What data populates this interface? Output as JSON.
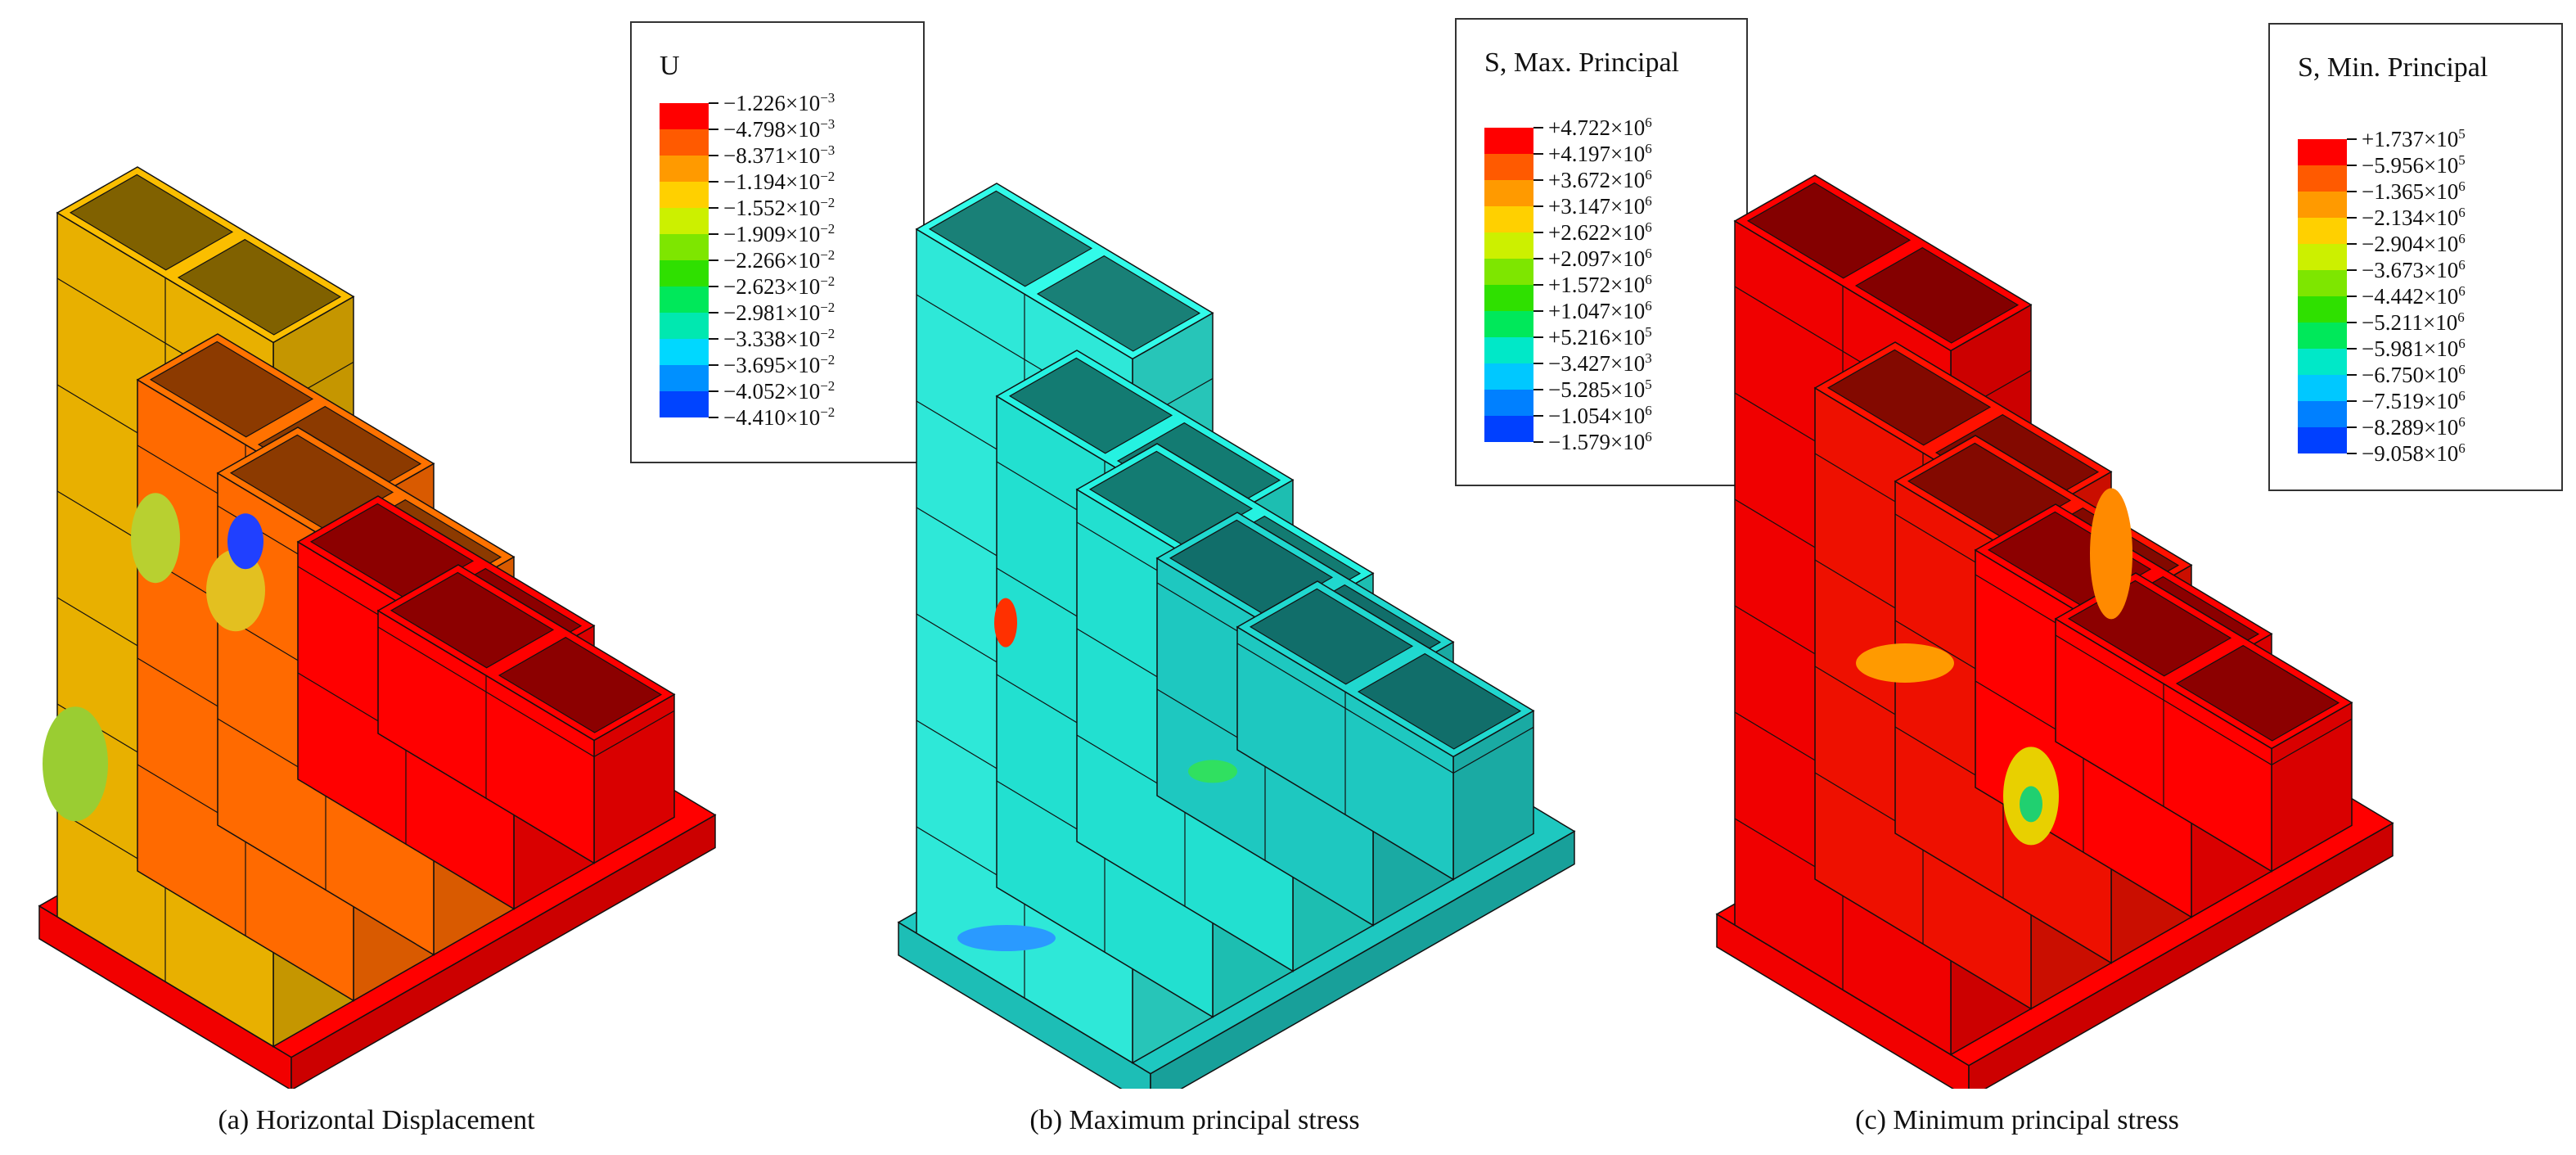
{
  "panels": [
    {
      "id": "a",
      "caption": "(a) Horizontal Displacement",
      "legend_title": "U",
      "legend_values": [
        "−1.226×10",
        "−4.798×10",
        "−8.371×10",
        "−1.194×10",
        "−1.552×10",
        "−1.909×10",
        "−2.266×10",
        "−2.623×10",
        "−2.981×10",
        "−3.338×10",
        "−3.695×10",
        "−4.052×10",
        "−4.410×10"
      ],
      "legend_exponents": [
        "−3",
        "−3",
        "−3",
        "−2",
        "−2",
        "−2",
        "−2",
        "−2",
        "−2",
        "−2",
        "−2",
        "−2",
        "−2"
      ],
      "legend_colors": [
        "#ff0000",
        "#ff5a00",
        "#ff9a00",
        "#ffd000",
        "#ccf000",
        "#7ee600",
        "#2fe000",
        "#00e85a",
        "#00e8b0",
        "#00d8ff",
        "#0090ff",
        "#0044ff",
        "#0000e0"
      ],
      "model_colors": {
        "top": "#e8b000",
        "mid": "#ff6a00",
        "base": "#ff0000",
        "edge": "#111111"
      }
    },
    {
      "id": "b",
      "caption": "(b) Maximum principal stress",
      "legend_title": "S, Max. Principal",
      "legend_values": [
        "+4.722×10",
        "+4.197×10",
        "+3.672×10",
        "+3.147×10",
        "+2.622×10",
        "+2.097×10",
        "+1.572×10",
        "+1.047×10",
        "+5.216×10",
        "−3.427×10",
        "−5.285×10",
        "−1.054×10",
        "−1.579×10"
      ],
      "legend_exponents": [
        "6",
        "6",
        "6",
        "6",
        "6",
        "6",
        "6",
        "6",
        "5",
        "3",
        "5",
        "6",
        "6"
      ],
      "legend_colors": [
        "#ff0000",
        "#ff5a00",
        "#ff9a00",
        "#ffd000",
        "#ccf000",
        "#7ee600",
        "#2fe000",
        "#00e85a",
        "#00e8c8",
        "#00c8ff",
        "#0080ff",
        "#0040ff",
        "#0000e0"
      ],
      "model_colors": {
        "top": "#2ee8d8",
        "mid": "#22e0d0",
        "base": "#1ec8c0",
        "edge": "#111111"
      }
    },
    {
      "id": "c",
      "caption": "(c) Minimum principal stress",
      "legend_title": "S, Min. Principal",
      "legend_values": [
        "+1.737×10",
        "−5.956×10",
        "−1.365×10",
        "−2.134×10",
        "−2.904×10",
        "−3.673×10",
        "−4.442×10",
        "−5.211×10",
        "−5.981×10",
        "−6.750×10",
        "−7.519×10",
        "−8.289×10",
        "−9.058×10"
      ],
      "legend_exponents": [
        "5",
        "5",
        "6",
        "6",
        "6",
        "6",
        "6",
        "6",
        "6",
        "6",
        "6",
        "6",
        "6"
      ],
      "legend_colors": [
        "#ff0000",
        "#ff5a00",
        "#ff9a00",
        "#ffd000",
        "#ccf000",
        "#7ee600",
        "#2fe000",
        "#00e85a",
        "#00e8c8",
        "#00c8ff",
        "#0080ff",
        "#0040ff",
        "#0000e0"
      ],
      "model_colors": {
        "top": "#f00000",
        "mid": "#ee1000",
        "base": "#ff0000",
        "edge": "#111111"
      }
    }
  ]
}
